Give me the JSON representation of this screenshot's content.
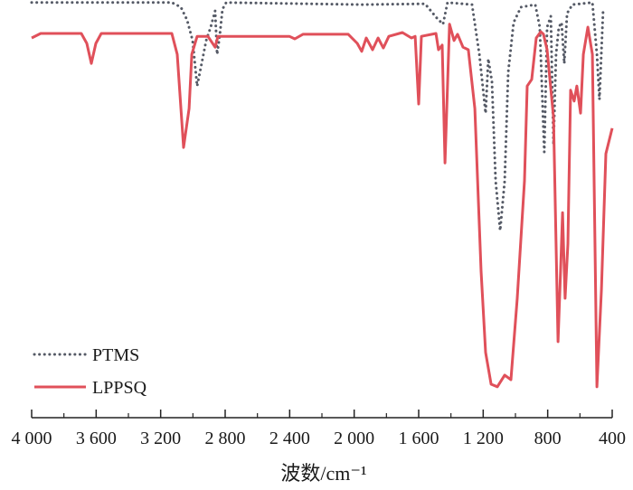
{
  "chart_data": {
    "type": "line",
    "title": "",
    "xlabel": "波数/cm⁻¹",
    "ylabel": "",
    "xlim": [
      4000,
      400
    ],
    "ylim": [
      0,
      100
    ],
    "x_reversed": true,
    "grid": false,
    "legend_position": "bottom-left",
    "xticks": [
      4000,
      3600,
      3200,
      2800,
      2400,
      2000,
      1600,
      1200,
      800,
      400
    ],
    "xtick_labels": [
      "4 000",
      "3 600",
      "3 200",
      "2 800",
      "2 400",
      "2 000",
      "1 600",
      "1 200",
      "800",
      "400"
    ],
    "minor_xticks": [
      3800,
      3400,
      3000,
      2600,
      2200,
      1800,
      1400,
      1000,
      600
    ],
    "series": [
      {
        "name": "PTMS",
        "style": "dotted",
        "color": "#555a66",
        "x": [
          4000,
          3131,
          3075,
          3036,
          3002,
          2974,
          2946,
          2918,
          2890,
          2862,
          2850,
          2834,
          2817,
          2794,
          1953,
          1561,
          1488,
          1449,
          1421,
          1269,
          1224,
          1185,
          1168,
          1146,
          1123,
          1095,
          1067,
          1045,
          1011,
          966,
          877,
          849,
          821,
          804,
          781,
          764,
          748,
          731,
          714,
          697,
          680,
          647,
          523,
          495,
          479,
          456
        ],
        "y": [
          99.4,
          99.4,
          98.3,
          95.2,
          90.3,
          79.4,
          84.8,
          90.3,
          93.5,
          97.4,
          87.0,
          91.3,
          97.8,
          99.4,
          98.9,
          99.1,
          95.7,
          94.2,
          99.4,
          98.9,
          87.0,
          72.9,
          85.9,
          80.5,
          56.7,
          44.8,
          56.7,
          82.7,
          94.6,
          98.3,
          98.9,
          93.5,
          63.6,
          93.5,
          96.1,
          65.4,
          87.0,
          93.5,
          94.6,
          84.8,
          96.8,
          98.9,
          99.4,
          87.0,
          76.2,
          97.8
        ]
      },
      {
        "name": "LPPSQ",
        "style": "solid",
        "color": "#e0505a",
        "x": [
          4000,
          3944,
          3692,
          3658,
          3630,
          3602,
          3568,
          3131,
          3097,
          3058,
          3024,
          3007,
          2974,
          2907,
          2862,
          2845,
          2402,
          2368,
          2318,
          2037,
          1981,
          1953,
          1925,
          1886,
          1852,
          1819,
          1785,
          1701,
          1645,
          1622,
          1600,
          1583,
          1493,
          1477,
          1454,
          1437,
          1409,
          1381,
          1359,
          1325,
          1292,
          1252,
          1213,
          1185,
          1151,
          1112,
          1067,
          1028,
          989,
          944,
          927,
          899,
          871,
          843,
          826,
          804,
          764,
          736,
          720,
          708,
          692,
          675,
          658,
          636,
          619,
          596,
          579,
          551,
          523,
          495,
          467,
          439,
          400
        ],
        "y": [
          90.9,
          92.0,
          92.0,
          89.6,
          84.8,
          89.6,
          92.0,
          92.0,
          87.0,
          64.7,
          74.0,
          87.0,
          91.3,
          91.3,
          88.7,
          91.3,
          91.3,
          90.7,
          91.8,
          91.8,
          89.6,
          87.7,
          90.9,
          88.1,
          90.9,
          88.5,
          91.3,
          92.2,
          90.9,
          91.3,
          75.1,
          91.3,
          92.0,
          88.1,
          89.2,
          61.0,
          94.2,
          90.3,
          91.8,
          88.7,
          88.1,
          74.0,
          35.1,
          15.6,
          8.0,
          7.4,
          10.2,
          9.1,
          28.6,
          56.7,
          79.4,
          81.0,
          90.9,
          92.4,
          91.8,
          88.1,
          71.9,
          18.2,
          35.1,
          49.1,
          28.6,
          41.6,
          78.4,
          75.8,
          79.4,
          72.9,
          87.0,
          93.5,
          87.0,
          7.4,
          30.7,
          63.2,
          69.3
        ]
      }
    ]
  }
}
